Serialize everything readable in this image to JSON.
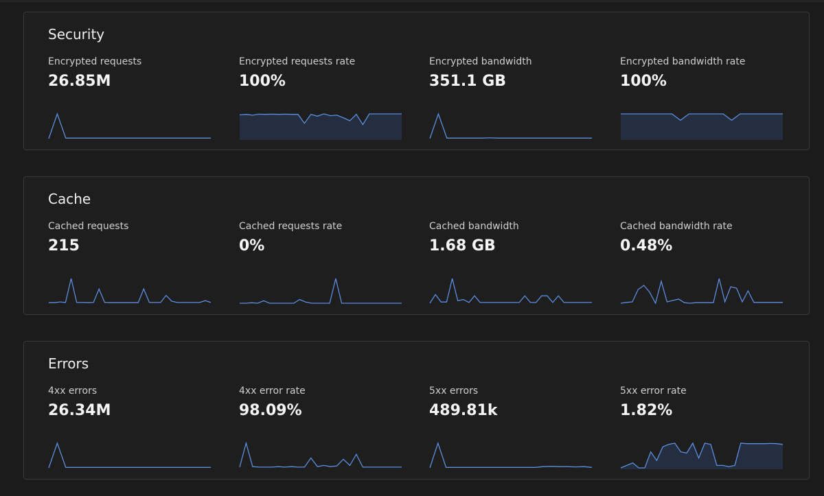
{
  "sections": [
    {
      "title": "Security",
      "metrics": [
        {
          "label": "Encrypted requests",
          "value": "26.85M",
          "fill": false,
          "trend": [
            0,
            100,
            2,
            2,
            2,
            2,
            2,
            2,
            2,
            2,
            2,
            2,
            2,
            2,
            2,
            2,
            2,
            2,
            2,
            2
          ]
        },
        {
          "label": "Encrypted requests rate",
          "value": "100%",
          "fill": true,
          "trend": [
            93,
            95,
            92,
            96,
            95,
            96,
            95,
            96,
            95,
            95,
            60,
            95,
            88,
            97,
            90,
            92,
            82,
            70,
            95,
            55,
            97,
            97,
            97,
            97,
            97,
            97
          ]
        },
        {
          "label": "Encrypted bandwidth",
          "value": "351.1 GB",
          "fill": false,
          "trend": [
            0,
            100,
            2,
            2,
            2,
            2,
            2,
            3,
            2,
            2,
            2,
            2,
            2,
            2,
            2,
            2,
            2,
            2,
            2,
            2
          ]
        },
        {
          "label": "Encrypted bandwidth rate",
          "value": "100%",
          "fill": true,
          "trend": [
            97,
            97,
            97,
            97,
            97,
            97,
            97,
            72,
            97,
            97,
            97,
            97,
            97,
            72,
            97,
            97,
            97,
            97,
            97,
            97
          ]
        }
      ]
    },
    {
      "title": "Cache",
      "metrics": [
        {
          "label": "Cached requests",
          "value": "215",
          "fill": false,
          "trend": [
            2,
            2,
            5,
            3,
            95,
            3,
            3,
            2,
            3,
            55,
            3,
            2,
            2,
            2,
            2,
            2,
            2,
            55,
            3,
            3,
            3,
            30,
            8,
            3,
            3,
            3,
            3,
            3,
            10,
            3
          ]
        },
        {
          "label": "Cached requests rate",
          "value": "0%",
          "fill": false,
          "trend": [
            0,
            0,
            2,
            0,
            10,
            0,
            0,
            0,
            0,
            0,
            15,
            5,
            0,
            0,
            0,
            0,
            100,
            0,
            0,
            0,
            0,
            0,
            0,
            0,
            0,
            0,
            0,
            0
          ]
        },
        {
          "label": "Cached bandwidth",
          "value": "1.68 GB",
          "fill": false,
          "trend": [
            0,
            35,
            5,
            5,
            100,
            10,
            15,
            3,
            30,
            3,
            3,
            3,
            3,
            3,
            3,
            3,
            3,
            30,
            3,
            3,
            30,
            30,
            3,
            30,
            3,
            3,
            3,
            3,
            3,
            3
          ]
        },
        {
          "label": "Cached bandwidth rate",
          "value": "0.48%",
          "fill": false,
          "trend": [
            0,
            3,
            5,
            50,
            65,
            40,
            0,
            80,
            5,
            10,
            15,
            2,
            0,
            2,
            2,
            2,
            2,
            90,
            5,
            60,
            55,
            5,
            45,
            3,
            3,
            3,
            3,
            3,
            3
          ]
        }
      ]
    },
    {
      "title": "Errors",
      "metrics": [
        {
          "label": "4xx errors",
          "value": "26.34M",
          "fill": false,
          "trend": [
            0,
            100,
            2,
            2,
            2,
            2,
            2,
            2,
            2,
            2,
            2,
            2,
            2,
            2,
            2,
            2,
            2,
            2,
            2,
            2
          ]
        },
        {
          "label": "4xx error rate",
          "value": "98.09%",
          "fill": false,
          "trend": [
            3,
            100,
            5,
            3,
            3,
            3,
            5,
            3,
            5,
            3,
            3,
            40,
            5,
            10,
            5,
            8,
            35,
            10,
            55,
            3,
            3,
            3,
            3,
            3,
            3,
            3
          ]
        },
        {
          "label": "5xx errors",
          "value": "489.81k",
          "fill": false,
          "trend": [
            0,
            100,
            2,
            2,
            2,
            2,
            2,
            2,
            2,
            2,
            2,
            2,
            2,
            2,
            5,
            6,
            5,
            5,
            4,
            5,
            2
          ]
        },
        {
          "label": "5xx error rate",
          "value": "1.82%",
          "fill": true,
          "trend": [
            0,
            10,
            20,
            0,
            0,
            65,
            30,
            85,
            95,
            100,
            65,
            60,
            100,
            40,
            100,
            95,
            10,
            10,
            5,
            10,
            100,
            98,
            98,
            98,
            98,
            99,
            98,
            95
          ]
        }
      ]
    }
  ]
}
